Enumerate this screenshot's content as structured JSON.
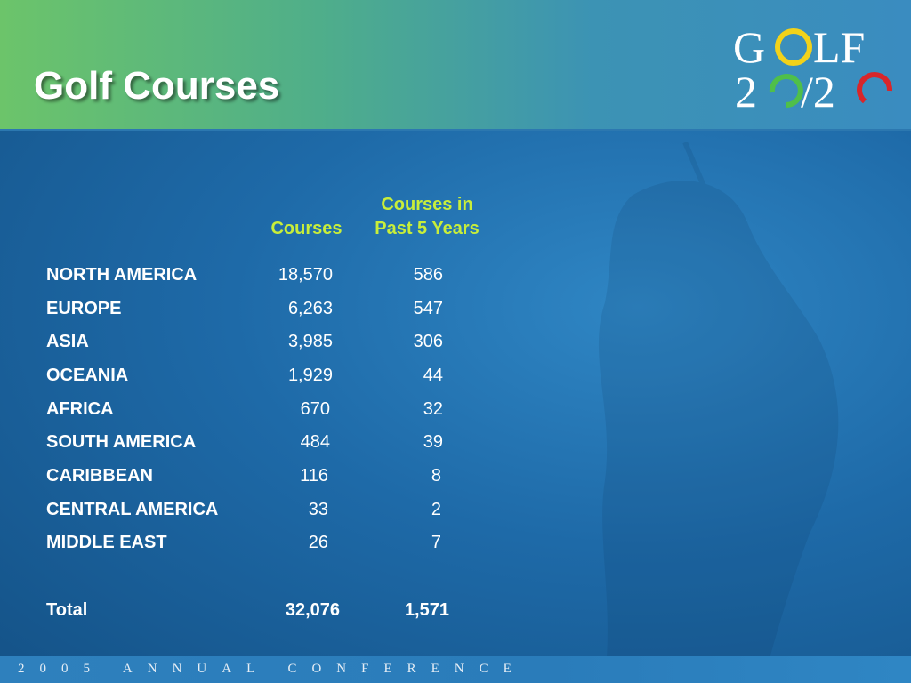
{
  "title": "Golf Courses",
  "logo": {
    "line1": "GOLF",
    "line2": "20/20"
  },
  "columns": {
    "courses": "Courses",
    "past5_line1": "Courses in",
    "past5_line2": "Past 5 Years"
  },
  "rows": [
    {
      "region": "NORTH AMERICA",
      "courses": "18,570",
      "past5": "586"
    },
    {
      "region": "EUROPE",
      "courses": "6,263",
      "past5": "547"
    },
    {
      "region": "ASIA",
      "courses": "3,985",
      "past5": "306"
    },
    {
      "region": "OCEANIA",
      "courses": "1,929",
      "past5": "44"
    },
    {
      "region": "AFRICA",
      "courses": "670",
      "past5": "32"
    },
    {
      "region": "SOUTH AMERICA",
      "courses": "484",
      "past5": "39"
    },
    {
      "region": "CARIBBEAN",
      "courses": "116",
      "past5": "8"
    },
    {
      "region": "CENTRAL AMERICA",
      "courses": "33",
      "past5": "2"
    },
    {
      "region": "MIDDLE EAST",
      "courses": "26",
      "past5": "7"
    }
  ],
  "total": {
    "label": "Total",
    "courses": "32,076",
    "past5": "1,571"
  },
  "footer": "2005 ANNUAL CONFERENCE",
  "colors": {
    "header_green": "#6cc46a",
    "accent_yellow": "#c8ee3a",
    "background_blue": "#1e6aa8"
  }
}
